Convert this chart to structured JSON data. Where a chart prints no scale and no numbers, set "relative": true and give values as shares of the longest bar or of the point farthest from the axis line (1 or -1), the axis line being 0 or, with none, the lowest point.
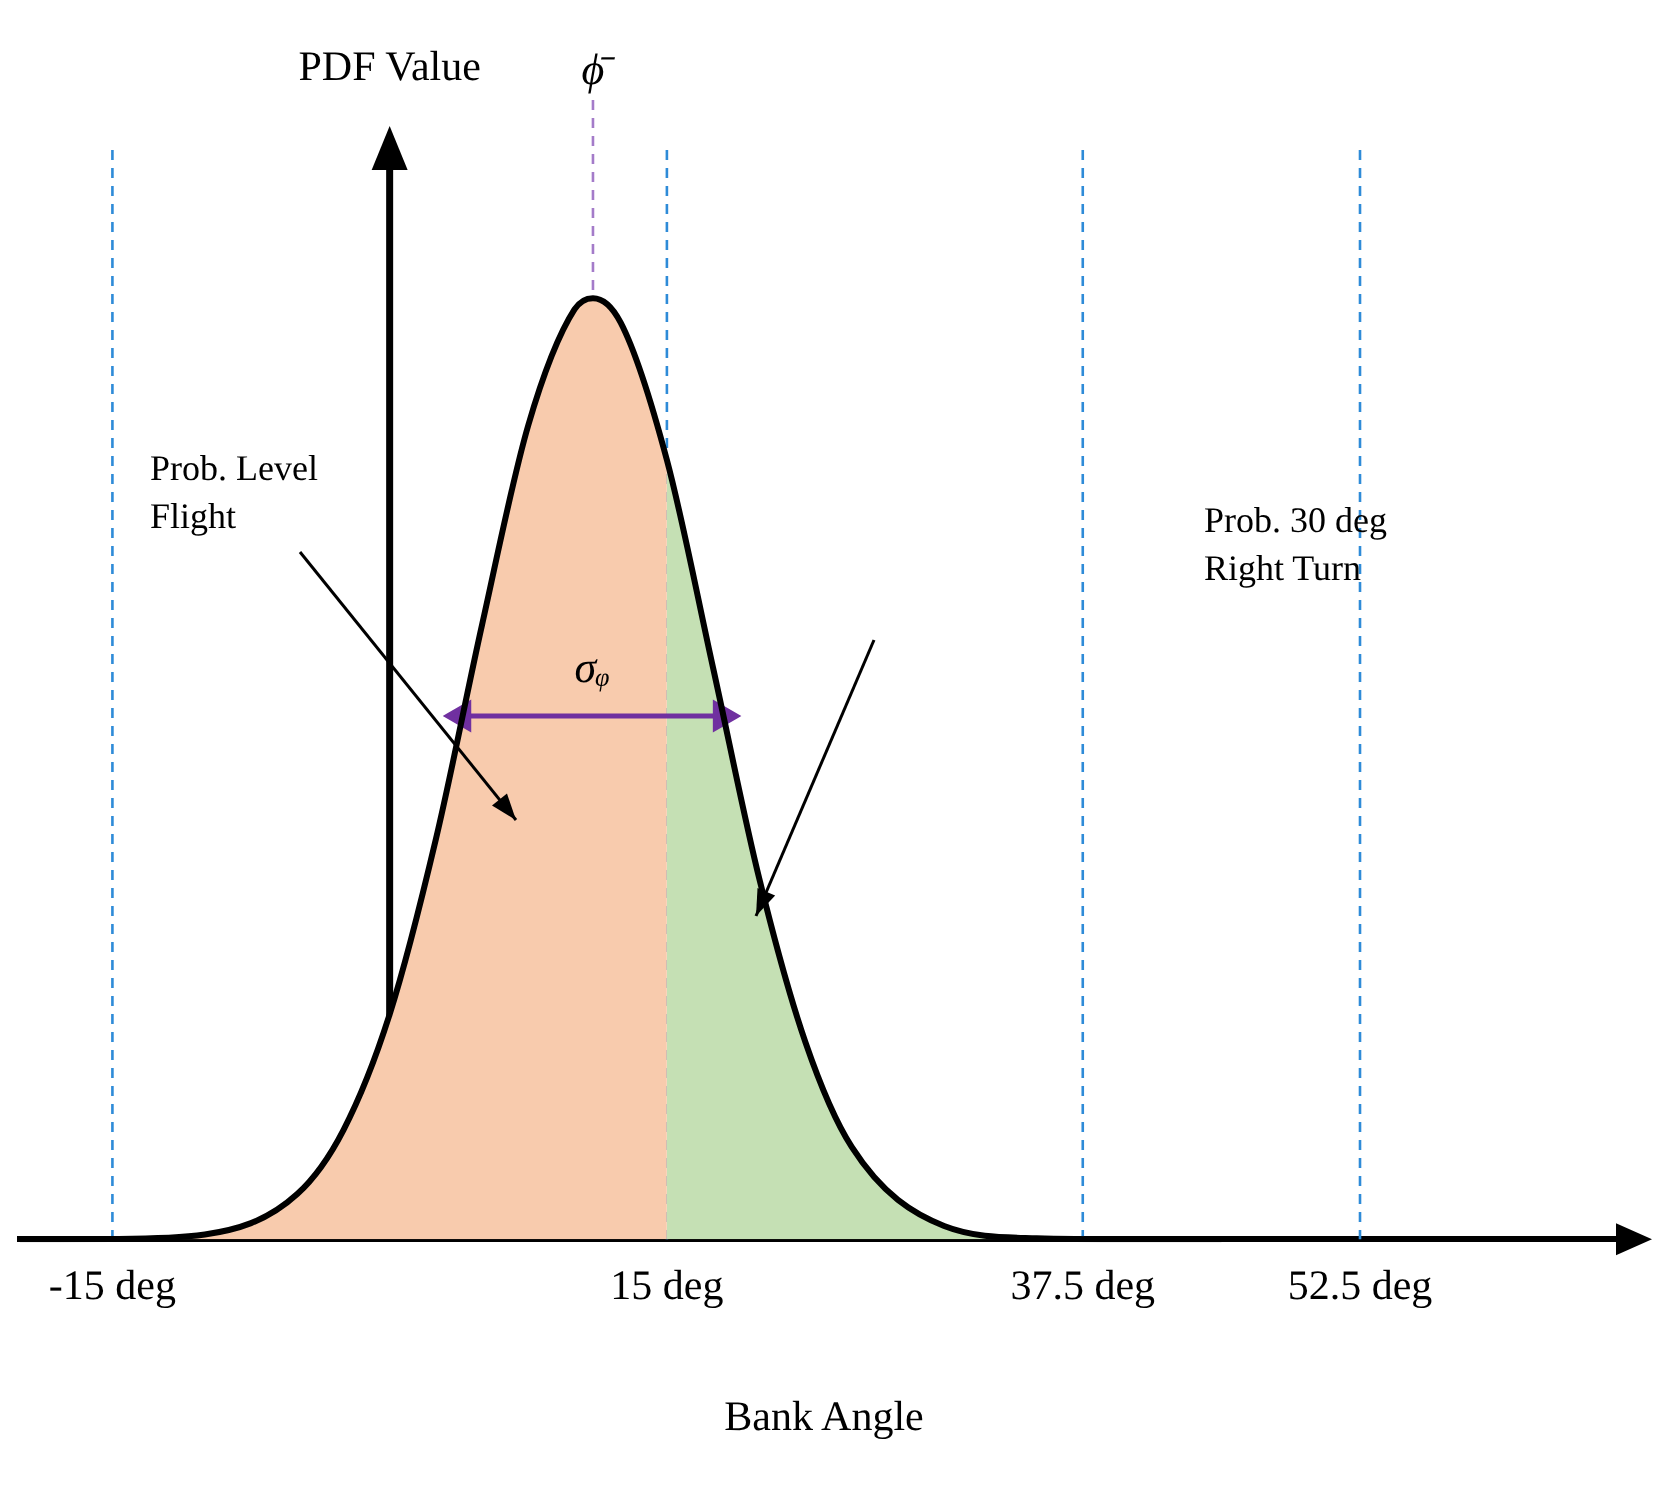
{
  "chart_data": {
    "type": "area",
    "relative": true,
    "xlabel": "Bank Angle",
    "ylabel": "PDF Value",
    "xlim": [
      -20,
      67
    ],
    "xticks": [
      {
        "value": -15,
        "label": "-15 deg"
      },
      {
        "value": 15,
        "label": "15 deg"
      },
      {
        "value": 37.5,
        "label": "37.5 deg"
      },
      {
        "value": 52.5,
        "label": "52.5 deg"
      }
    ],
    "series": [
      {
        "color": "#f8cbad",
        "x": [
          -20,
          -15,
          -10,
          -5,
          -2.5,
          0,
          2.5,
          5,
          7.5,
          10,
          11,
          12.5,
          15
        ],
        "values": [
          0,
          0.0003,
          0.005,
          0.048,
          0.116,
          0.239,
          0.425,
          0.653,
          0.865,
          0.988,
          1,
          0.974,
          0.828
        ]
      },
      {
        "color": "#c5e0b4",
        "x": [
          15,
          17.5,
          20,
          22.5,
          25,
          30,
          35,
          40,
          45
        ],
        "values": [
          0.828,
          0.607,
          0.383,
          0.209,
          0.098,
          0.014,
          0.001,
          0,
          0
        ]
      },
      {
        "type": "line",
        "color": "#000000",
        "x": [
          -20,
          -15,
          -10,
          -5,
          -2.5,
          0,
          2.5,
          5,
          7.5,
          10,
          11,
          12.5,
          15,
          17.5,
          20,
          22.5,
          25,
          30,
          35,
          40,
          45
        ],
        "values": [
          0,
          0.0003,
          0.005,
          0.048,
          0.116,
          0.239,
          0.425,
          0.653,
          0.865,
          0.988,
          1,
          0.974,
          0.828,
          0.607,
          0.383,
          0.209,
          0.098,
          0.014,
          0.001,
          0,
          0
        ]
      },
      {
        "type": "line",
        "name": "σᵩ",
        "color": "#7030a0",
        "marker": "triangle",
        "x": [
          3.9,
          18
        ],
        "values": [
          0.556,
          0.556
        ]
      }
    ],
    "ref_lines": [
      {
        "axis": "x",
        "value": -15,
        "label": null,
        "color": "#2e8bd8",
        "line_style": "dashed"
      },
      {
        "axis": "x",
        "value": 15,
        "label": null,
        "color": "#2e8bd8",
        "line_style": "dashed"
      },
      {
        "axis": "x",
        "value": 37.5,
        "label": null,
        "color": "#2e8bd8",
        "line_style": "dashed"
      },
      {
        "axis": "x",
        "value": 52.5,
        "label": null,
        "color": "#2e8bd8",
        "line_style": "dashed"
      },
      {
        "axis": "x",
        "value": 11,
        "label": "ϕ̄",
        "color": "#a47bc9",
        "line_style": "dashed"
      },
      {
        "axis": "x",
        "value": 0,
        "label": null,
        "color": "#000000",
        "line_style": "solid"
      }
    ],
    "annotations": [
      "Prob. Level\nFlight",
      "Prob. 30 deg\nRight Turn"
    ],
    "grid": false,
    "legend": false
  }
}
